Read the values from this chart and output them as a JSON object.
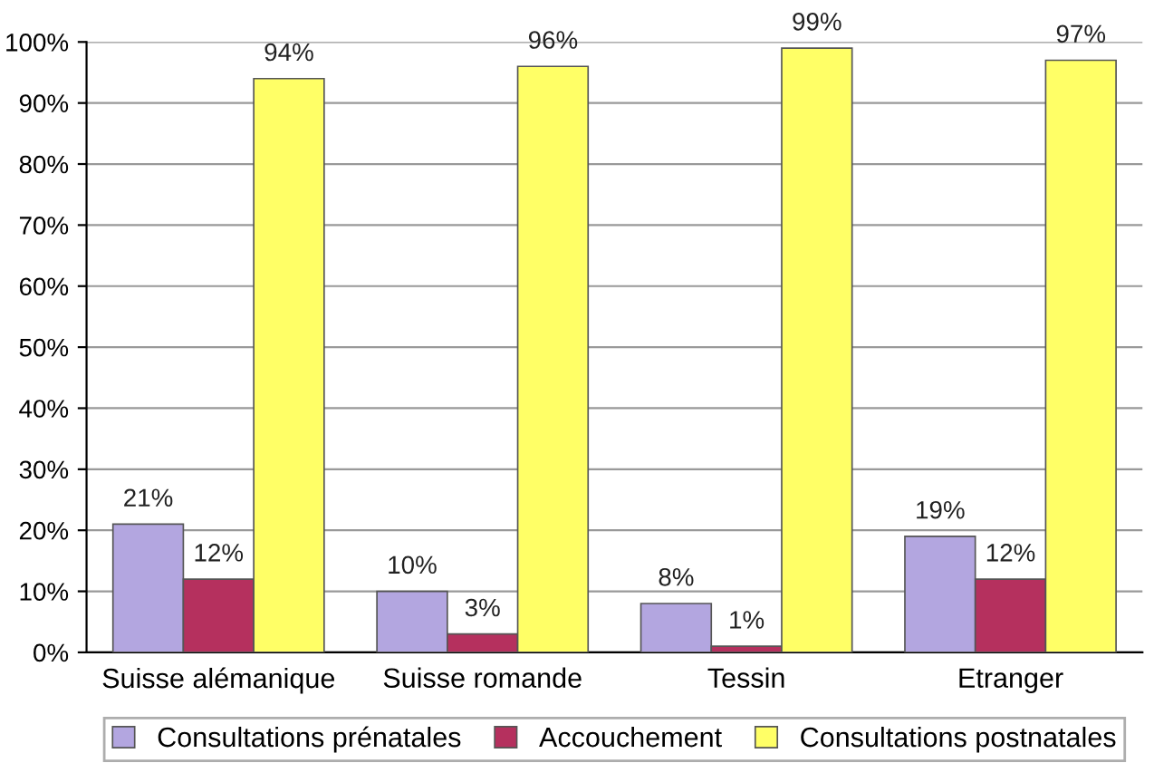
{
  "chart_data": {
    "type": "bar",
    "categories": [
      "Suisse alémanique",
      "Suisse romande",
      "Tessin",
      "Etranger"
    ],
    "series": [
      {
        "name": "Consultations prénatales",
        "color": "#b3a6e0",
        "values": [
          21,
          10,
          8,
          19
        ],
        "value_labels": [
          "21%",
          "10%",
          "8%",
          "19%"
        ]
      },
      {
        "name": "Accouchement",
        "color": "#b5305e",
        "values": [
          12,
          3,
          1,
          12
        ],
        "value_labels": [
          "12%",
          "3%",
          "1%",
          "12%"
        ]
      },
      {
        "name": "Consultations postnatales",
        "color": "#ffff66",
        "values": [
          94,
          96,
          99,
          97
        ],
        "value_labels": [
          "94%",
          "96%",
          "99%",
          "97%"
        ]
      }
    ],
    "ylim": [
      0,
      100
    ],
    "yticks": [
      {
        "value": 0,
        "label": "0%"
      },
      {
        "value": 10,
        "label": "10%"
      },
      {
        "value": 20,
        "label": "20%"
      },
      {
        "value": 30,
        "label": "30%"
      },
      {
        "value": 40,
        "label": "40%"
      },
      {
        "value": 50,
        "label": "50%"
      },
      {
        "value": 60,
        "label": "60%"
      },
      {
        "value": 70,
        "label": "70%"
      },
      {
        "value": 80,
        "label": "80%"
      },
      {
        "value": 90,
        "label": "90%"
      },
      {
        "value": 100,
        "label": "100%"
      }
    ],
    "grid": "y",
    "legend": "bottom"
  }
}
